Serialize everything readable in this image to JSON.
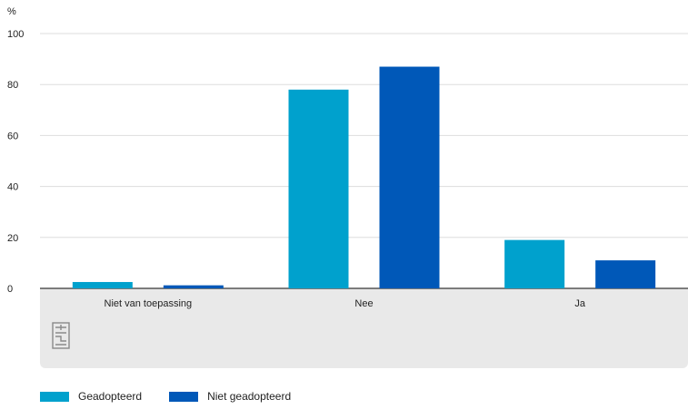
{
  "chart_data": {
    "type": "bar",
    "ylabel": "%",
    "ylim": [
      0,
      100
    ],
    "yticks": [
      0,
      20,
      40,
      60,
      80,
      100
    ],
    "categories": [
      "Niet van toepassing",
      "Nee",
      "Ja"
    ],
    "series": [
      {
        "name": "Geadopteerd",
        "color": "#00a1cd",
        "values": [
          2.5,
          78,
          19
        ]
      },
      {
        "name": "Niet geadopteerd",
        "color": "#0058b8",
        "values": [
          1.2,
          87,
          11
        ]
      }
    ],
    "grid": true,
    "legend_position": "bottom-left"
  },
  "logo_icon": "cbs-logo-icon"
}
